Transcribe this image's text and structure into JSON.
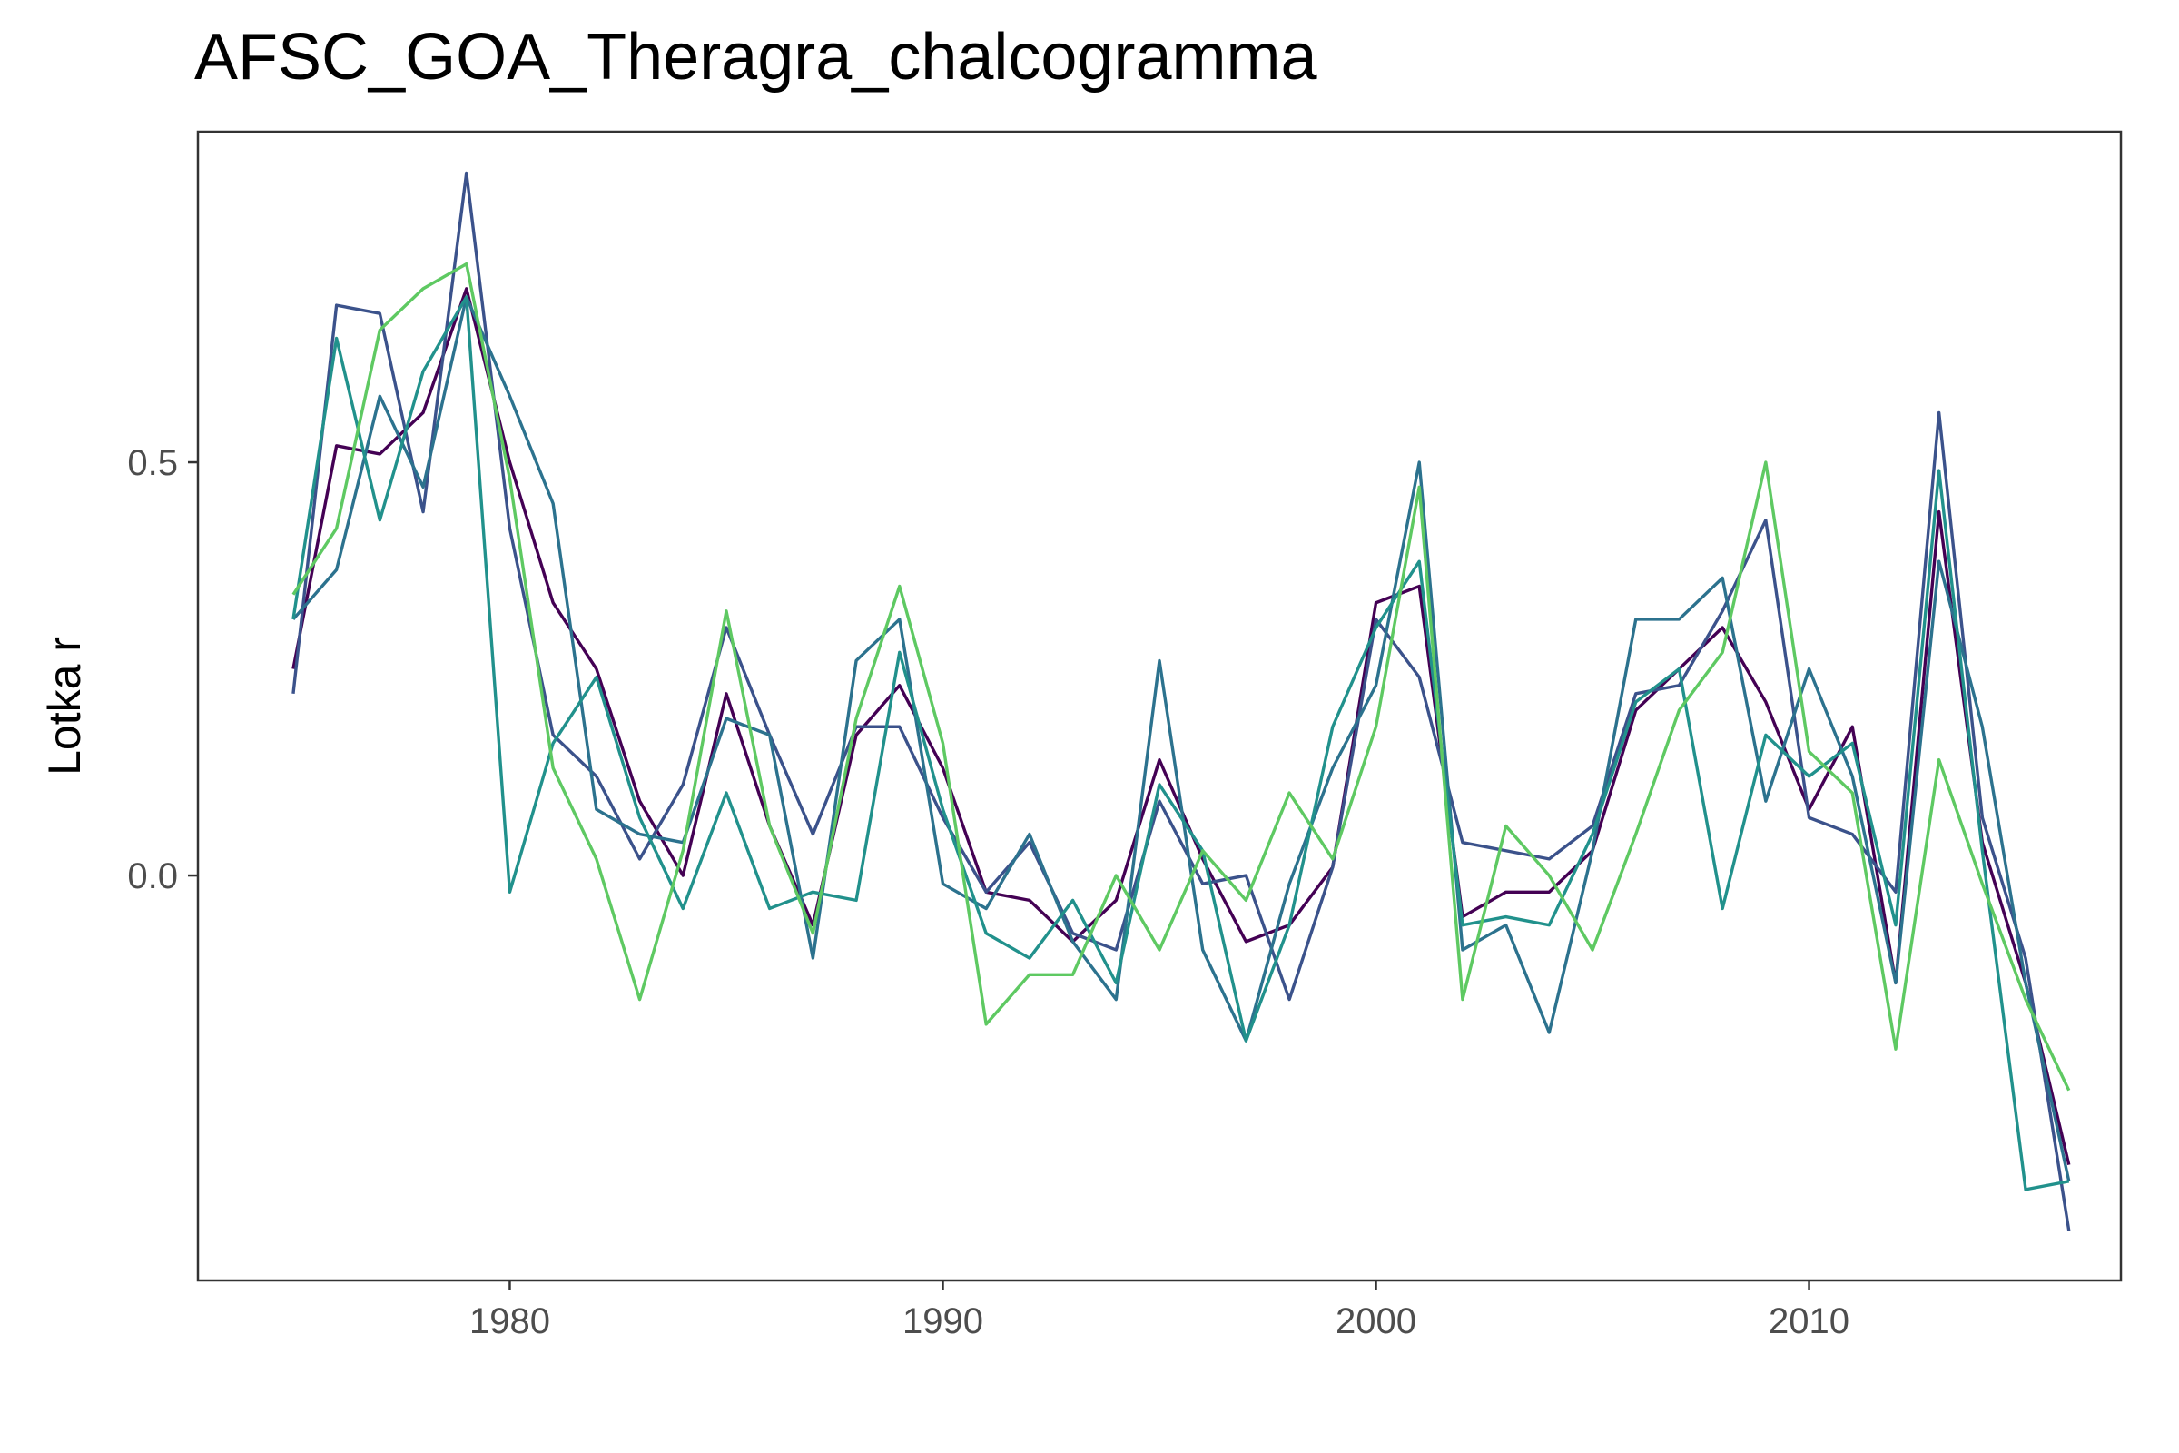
{
  "chart_data": {
    "type": "line",
    "title": "AFSC_GOA_Theragra_chalcogramma",
    "xlabel": "",
    "ylabel": "Lotka r",
    "xlim": [
      1972.8,
      2017.2
    ],
    "ylim": [
      -0.49,
      0.9
    ],
    "x_ticks": [
      1980,
      1990,
      2000,
      2010
    ],
    "x_tick_labels": [
      "1980",
      "1990",
      "2000",
      "2010"
    ],
    "y_ticks": [
      0.0,
      0.5
    ],
    "y_tick_labels": [
      "0.0",
      "0.5"
    ],
    "grid": false,
    "legend": "none",
    "x": [
      1975,
      1976,
      1977,
      1978,
      1979,
      1980,
      1981,
      1982,
      1983,
      1984,
      1985,
      1986,
      1987,
      1988,
      1989,
      1990,
      1991,
      1992,
      1993,
      1994,
      1995,
      1996,
      1997,
      1998,
      1999,
      2000,
      2001,
      2002,
      2003,
      2004,
      2005,
      2006,
      2007,
      2008,
      2009,
      2010,
      2011,
      2012,
      2013,
      2014,
      2015,
      2016
    ],
    "series": [
      {
        "color": "#440154",
        "values": [
          0.25,
          0.52,
          0.51,
          0.56,
          0.71,
          0.5,
          0.33,
          0.25,
          0.09,
          0.0,
          0.22,
          0.06,
          -0.06,
          0.17,
          0.23,
          0.13,
          -0.02,
          -0.03,
          -0.08,
          -0.03,
          0.14,
          0.02,
          -0.08,
          -0.06,
          0.01,
          0.33,
          0.35,
          -0.05,
          -0.02,
          -0.02,
          0.03,
          0.2,
          0.25,
          0.3,
          0.21,
          0.08,
          0.18,
          -0.13,
          0.44,
          0.04,
          -0.13,
          -0.35
        ]
      },
      {
        "color": "#3b528b",
        "values": [
          0.22,
          0.69,
          0.68,
          0.44,
          0.85,
          0.42,
          0.17,
          0.12,
          0.02,
          0.11,
          0.3,
          0.17,
          0.05,
          0.18,
          0.18,
          0.07,
          -0.02,
          0.04,
          -0.07,
          -0.09,
          0.09,
          -0.01,
          0.0,
          -0.15,
          0.01,
          0.31,
          0.24,
          0.04,
          0.03,
          0.02,
          0.06,
          0.22,
          0.23,
          0.32,
          0.43,
          0.07,
          0.05,
          -0.02,
          0.56,
          0.07,
          -0.1,
          -0.43
        ]
      },
      {
        "color": "#2c728e",
        "values": [
          0.31,
          0.37,
          0.58,
          0.47,
          0.7,
          0.58,
          0.45,
          0.08,
          0.05,
          0.04,
          0.19,
          0.17,
          -0.1,
          0.26,
          0.31,
          -0.01,
          -0.04,
          0.05,
          -0.08,
          -0.15,
          0.26,
          -0.09,
          -0.2,
          -0.01,
          0.13,
          0.23,
          0.5,
          -0.09,
          -0.06,
          -0.19,
          0.03,
          0.31,
          0.31,
          0.36,
          0.09,
          0.25,
          0.12,
          -0.13,
          0.38,
          0.18,
          -0.13,
          -0.37
        ]
      },
      {
        "color": "#21918c",
        "values": [
          0.31,
          0.65,
          0.43,
          0.61,
          0.7,
          -0.02,
          0.16,
          0.24,
          0.07,
          -0.04,
          0.1,
          -0.04,
          -0.02,
          -0.03,
          0.27,
          0.08,
          -0.07,
          -0.1,
          -0.03,
          -0.13,
          0.11,
          0.03,
          -0.2,
          -0.06,
          0.18,
          0.3,
          0.38,
          -0.06,
          -0.05,
          -0.06,
          0.05,
          0.21,
          0.25,
          -0.04,
          0.17,
          0.12,
          0.16,
          -0.06,
          0.49,
          0.03,
          -0.38,
          -0.37
        ]
      },
      {
        "color": "#5ec962",
        "values": [
          0.34,
          0.42,
          0.66,
          0.71,
          0.74,
          0.48,
          0.13,
          0.02,
          -0.15,
          0.03,
          0.32,
          0.06,
          -0.07,
          0.19,
          0.35,
          0.16,
          -0.18,
          -0.12,
          -0.12,
          0.0,
          -0.09,
          0.03,
          -0.03,
          0.1,
          0.02,
          0.18,
          0.47,
          -0.15,
          0.06,
          0.0,
          -0.09,
          0.05,
          0.2,
          0.27,
          0.5,
          0.15,
          0.1,
          -0.21,
          0.14,
          -0.01,
          -0.15,
          -0.26
        ]
      }
    ]
  }
}
